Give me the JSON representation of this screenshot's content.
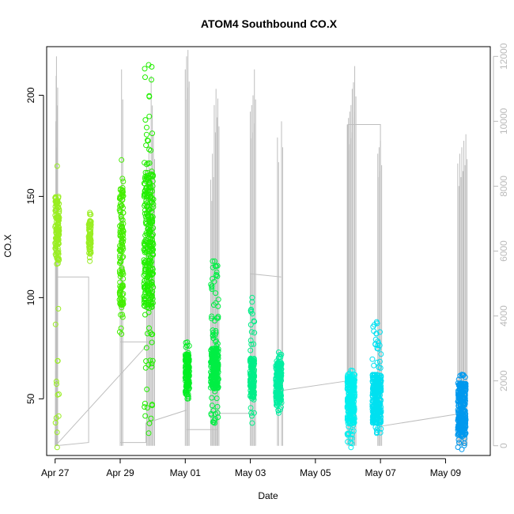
{
  "chart_data": {
    "type": "scatter",
    "title": "ATOM4 Southbound CO.X",
    "xlabel": "Date",
    "ylabel": "CO.X",
    "xlim": [
      "2020-04-26T17:45",
      "2020-05-10T09:00"
    ],
    "ylim": [
      22,
      224
    ],
    "ylim_right": [
      -300,
      12300
    ],
    "x_ticks": [
      {
        "date": "2020-04-27",
        "label": "Apr 27"
      },
      {
        "date": "2020-04-29",
        "label": "Apr 29"
      },
      {
        "date": "2020-05-01",
        "label": "May 01"
      },
      {
        "date": "2020-05-03",
        "label": "May 03"
      },
      {
        "date": "2020-05-05",
        "label": "May 05"
      },
      {
        "date": "2020-05-07",
        "label": "May 07"
      },
      {
        "date": "2020-05-09",
        "label": "May 09"
      }
    ],
    "y_ticks": [
      50,
      100,
      150,
      200
    ],
    "y_ticks_right": [
      0,
      2000,
      4000,
      6000,
      8000,
      10000,
      12000
    ],
    "colors": {
      "background": "#ffffff",
      "axis": "#000000",
      "right_axis": "#bbbbbb",
      "secondary_trace": "#bebebe"
    },
    "clusters": [
      {
        "start": "2020-04-27T00:00",
        "end": "2020-04-27T03:00",
        "low": 26,
        "high": 165,
        "dense_low": 118,
        "dense_high": 150,
        "color": "#99ee22",
        "peak": 215
      },
      {
        "start": "2020-04-28T00:45",
        "end": "2020-04-28T02:30",
        "low": 118,
        "high": 142,
        "dense_low": 122,
        "dense_high": 138,
        "color": "#99ee22"
      },
      {
        "start": "2020-04-28T23:30",
        "end": "2020-04-29T02:30",
        "low": 82,
        "high": 168,
        "dense_low": 95,
        "dense_high": 155,
        "color": "#44ee00"
      },
      {
        "start": "2020-04-29T17:30",
        "end": "2020-04-30T00:30",
        "low": 33,
        "high": 215,
        "dense_low": 95,
        "dense_high": 162,
        "color": "#22ee00"
      },
      {
        "start": "2020-05-01T00:00",
        "end": "2020-05-01T03:00",
        "low": 50,
        "high": 78,
        "dense_low": 55,
        "dense_high": 72,
        "color": "#00ee22"
      },
      {
        "start": "2020-05-01T18:45",
        "end": "2020-05-02T00:30",
        "low": 38,
        "high": 118,
        "dense_low": 55,
        "dense_high": 75,
        "color": "#00ee44"
      },
      {
        "start": "2020-05-02T23:45",
        "end": "2020-05-03T03:00",
        "low": 38,
        "high": 100,
        "dense_low": 50,
        "dense_high": 70,
        "color": "#00ee88"
      },
      {
        "start": "2020-05-03T18:45",
        "end": "2020-05-03T23:00",
        "low": 43,
        "high": 73,
        "dense_low": 48,
        "dense_high": 68,
        "color": "#00eea0"
      },
      {
        "start": "2020-05-05T23:30",
        "end": "2020-05-06T05:00",
        "low": 26,
        "high": 64,
        "dense_low": 38,
        "dense_high": 62,
        "color": "#00eeee"
      },
      {
        "start": "2020-05-06T18:00",
        "end": "2020-05-07T00:30",
        "low": 33,
        "high": 88,
        "dense_low": 38,
        "dense_high": 62,
        "color": "#00e0f0"
      },
      {
        "start": "2020-05-09T09:00",
        "end": "2020-05-09T15:00",
        "low": 25,
        "high": 62,
        "dense_low": 32,
        "dense_high": 58,
        "color": "#0099ee"
      }
    ],
    "spike_groups": [
      {
        "start": "2020-04-27T00:15",
        "end": "2020-04-27T01:00",
        "peaks": [
          6800,
          10000,
          11400,
          12000
        ]
      },
      {
        "start": "2020-04-29T00:00",
        "end": "2020-04-29T01:00",
        "peaks": [
          7500,
          11600
        ]
      },
      {
        "start": "2020-04-29T19:30",
        "end": "2020-04-30T00:30",
        "peaks": [
          8800,
          9300,
          11400,
          9600
        ]
      },
      {
        "start": "2020-05-01T00:00",
        "end": "2020-05-01T02:00",
        "peaks": [
          11600,
          12000,
          12200
        ]
      },
      {
        "start": "2020-05-01T18:45",
        "end": "2020-05-02T00:00",
        "peaks": [
          8200,
          9000,
          10500,
          11000,
          10700
        ]
      },
      {
        "start": "2020-05-03T00:00",
        "end": "2020-05-03T03:00",
        "peaks": [
          10300,
          10500,
          10800,
          11600
        ]
      },
      {
        "start": "2020-05-03T20:00",
        "end": "2020-05-03T23:00",
        "peaks": [
          9500,
          10000
        ]
      },
      {
        "start": "2020-05-05T23:30",
        "end": "2020-05-06T05:00",
        "peaks": [
          9900,
          10100,
          10300,
          10500,
          11000,
          11200,
          11700
        ]
      },
      {
        "start": "2020-05-06T22:00",
        "end": "2020-05-07T00:00",
        "peaks": [
          9000,
          9200,
          9400
        ]
      },
      {
        "start": "2020-05-09T09:00",
        "end": "2020-05-09T15:00",
        "peaks": [
          8700,
          9000,
          9200,
          9400,
          9600
        ]
      }
    ],
    "trace_path": [
      [
        "2020-04-27T00:00",
        0
      ],
      [
        "2020-04-27T01:00",
        5200
      ],
      [
        "2020-04-28T00:45",
        5200
      ],
      [
        "2020-04-28T00:45",
        100
      ],
      [
        "2020-04-27T00:15",
        0
      ],
      [
        "2020-04-29T22:00",
        3200
      ],
      [
        "2020-04-29T00:00",
        3200
      ],
      [
        "2020-04-29T00:00",
        100
      ],
      [
        "2020-04-29T19:00",
        100
      ],
      [
        "2020-04-29T19:00",
        700
      ],
      [
        "2020-05-01T01:00",
        1100
      ],
      [
        "2020-05-01T01:00",
        500
      ],
      [
        "2020-05-02T00:00",
        500
      ],
      [
        "2020-05-02T00:00",
        1000
      ],
      [
        "2020-05-03T00:00",
        1000
      ],
      [
        "2020-05-03T00:00",
        5300
      ],
      [
        "2020-05-03T23:00",
        5200
      ],
      [
        "2020-05-03T23:00",
        1700
      ],
      [
        "2020-05-06T00:00",
        2000
      ],
      [
        "2020-05-06T00:00",
        9900
      ],
      [
        "2020-05-07T00:00",
        9900
      ],
      [
        "2020-05-07T00:00",
        600
      ],
      [
        "2020-05-09T12:00",
        1000
      ]
    ]
  }
}
